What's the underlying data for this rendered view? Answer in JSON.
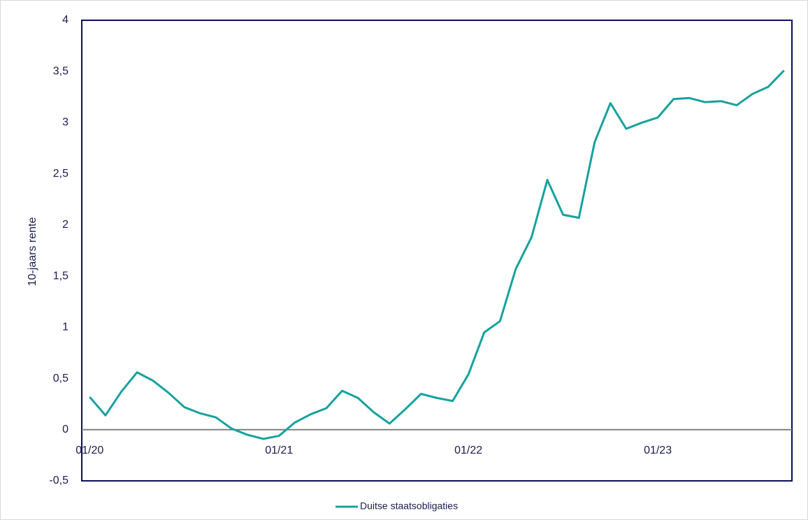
{
  "chart_data": {
    "type": "line",
    "y_label": "10-jaars rente",
    "categories": [
      "01/20",
      null,
      null,
      null,
      null,
      null,
      null,
      null,
      null,
      null,
      null,
      null,
      "01/21",
      null,
      null,
      null,
      null,
      null,
      null,
      null,
      null,
      null,
      null,
      null,
      "01/22",
      null,
      null,
      null,
      null,
      null,
      null,
      null,
      null,
      null,
      null,
      null,
      "01/23",
      null,
      null,
      null,
      null,
      null,
      null,
      null,
      null
    ],
    "series": [
      {
        "name": "Duitse staatsobligaties",
        "color": "#17a19d",
        "values": [
          0.32,
          0.14,
          0.37,
          0.56,
          0.48,
          0.36,
          0.22,
          0.16,
          0.12,
          0.01,
          -0.05,
          -0.09,
          -0.06,
          0.07,
          0.15,
          0.21,
          0.38,
          0.31,
          0.17,
          0.06,
          0.2,
          0.35,
          0.31,
          0.28,
          0.54,
          0.95,
          1.06,
          1.57,
          1.88,
          2.44,
          2.1,
          2.07,
          2.81,
          3.19,
          2.94,
          3.0,
          3.05,
          3.23,
          3.24,
          3.2,
          3.21,
          3.17,
          3.28,
          3.35,
          3.51
        ]
      }
    ],
    "ylim": [
      -0.5,
      4
    ],
    "yticks": [
      {
        "value": -0.5,
        "label": "-0,5"
      },
      0,
      {
        "value": 0.5,
        "label": "0,5"
      },
      1,
      {
        "value": 1.5,
        "label": "1,5"
      },
      2,
      {
        "value": 2.5,
        "label": "2,5"
      },
      3,
      {
        "value": 3.5,
        "label": "3,5"
      },
      4
    ],
    "grid": false,
    "legend": "bottom"
  }
}
